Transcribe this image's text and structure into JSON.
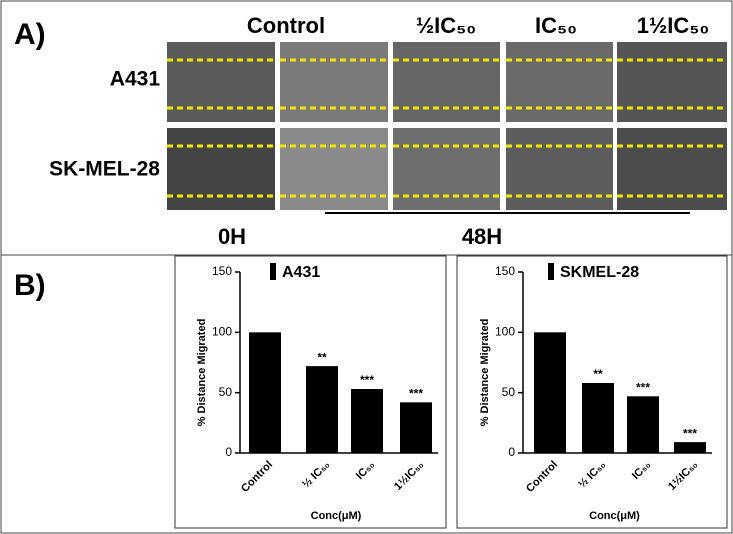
{
  "panel_a": {
    "label": "A)",
    "columns": [
      "Control",
      "½IC₅₀",
      "IC₅₀",
      "1½IC₅₀"
    ],
    "rows": [
      "A431",
      "SK-MEL-28"
    ],
    "times": [
      "0H",
      "48H"
    ]
  },
  "panel_b": {
    "label": "B)"
  },
  "chart_data": [
    {
      "type": "bar",
      "y_label": "% Distance Migrated",
      "x_label": "Conc(μM)",
      "categories": [
        "Control",
        "½ IC₅₀",
        "IC₅₀",
        "1½IC₅₀"
      ],
      "series": [
        {
          "name": "A431",
          "color": "#000000",
          "values": [
            100,
            72,
            53,
            42
          ]
        }
      ],
      "annotations": [
        null,
        "**",
        "***",
        "***"
      ],
      "ylim": [
        0,
        150
      ],
      "yticks": [
        0,
        50,
        100,
        150
      ]
    },
    {
      "type": "bar",
      "y_label": "% Distance Migrated",
      "x_label": "Conc(μM)",
      "categories": [
        "Control",
        "½ IC₅₀",
        "IC₅₀",
        "1½IC₅₀"
      ],
      "series": [
        {
          "name": "SKMEL-28",
          "color": "#000000",
          "values": [
            100,
            58,
            47,
            9
          ]
        }
      ],
      "annotations": [
        null,
        "**",
        "***",
        "***"
      ],
      "ylim": [
        0,
        150
      ],
      "yticks": [
        0,
        50,
        100,
        150
      ]
    }
  ]
}
